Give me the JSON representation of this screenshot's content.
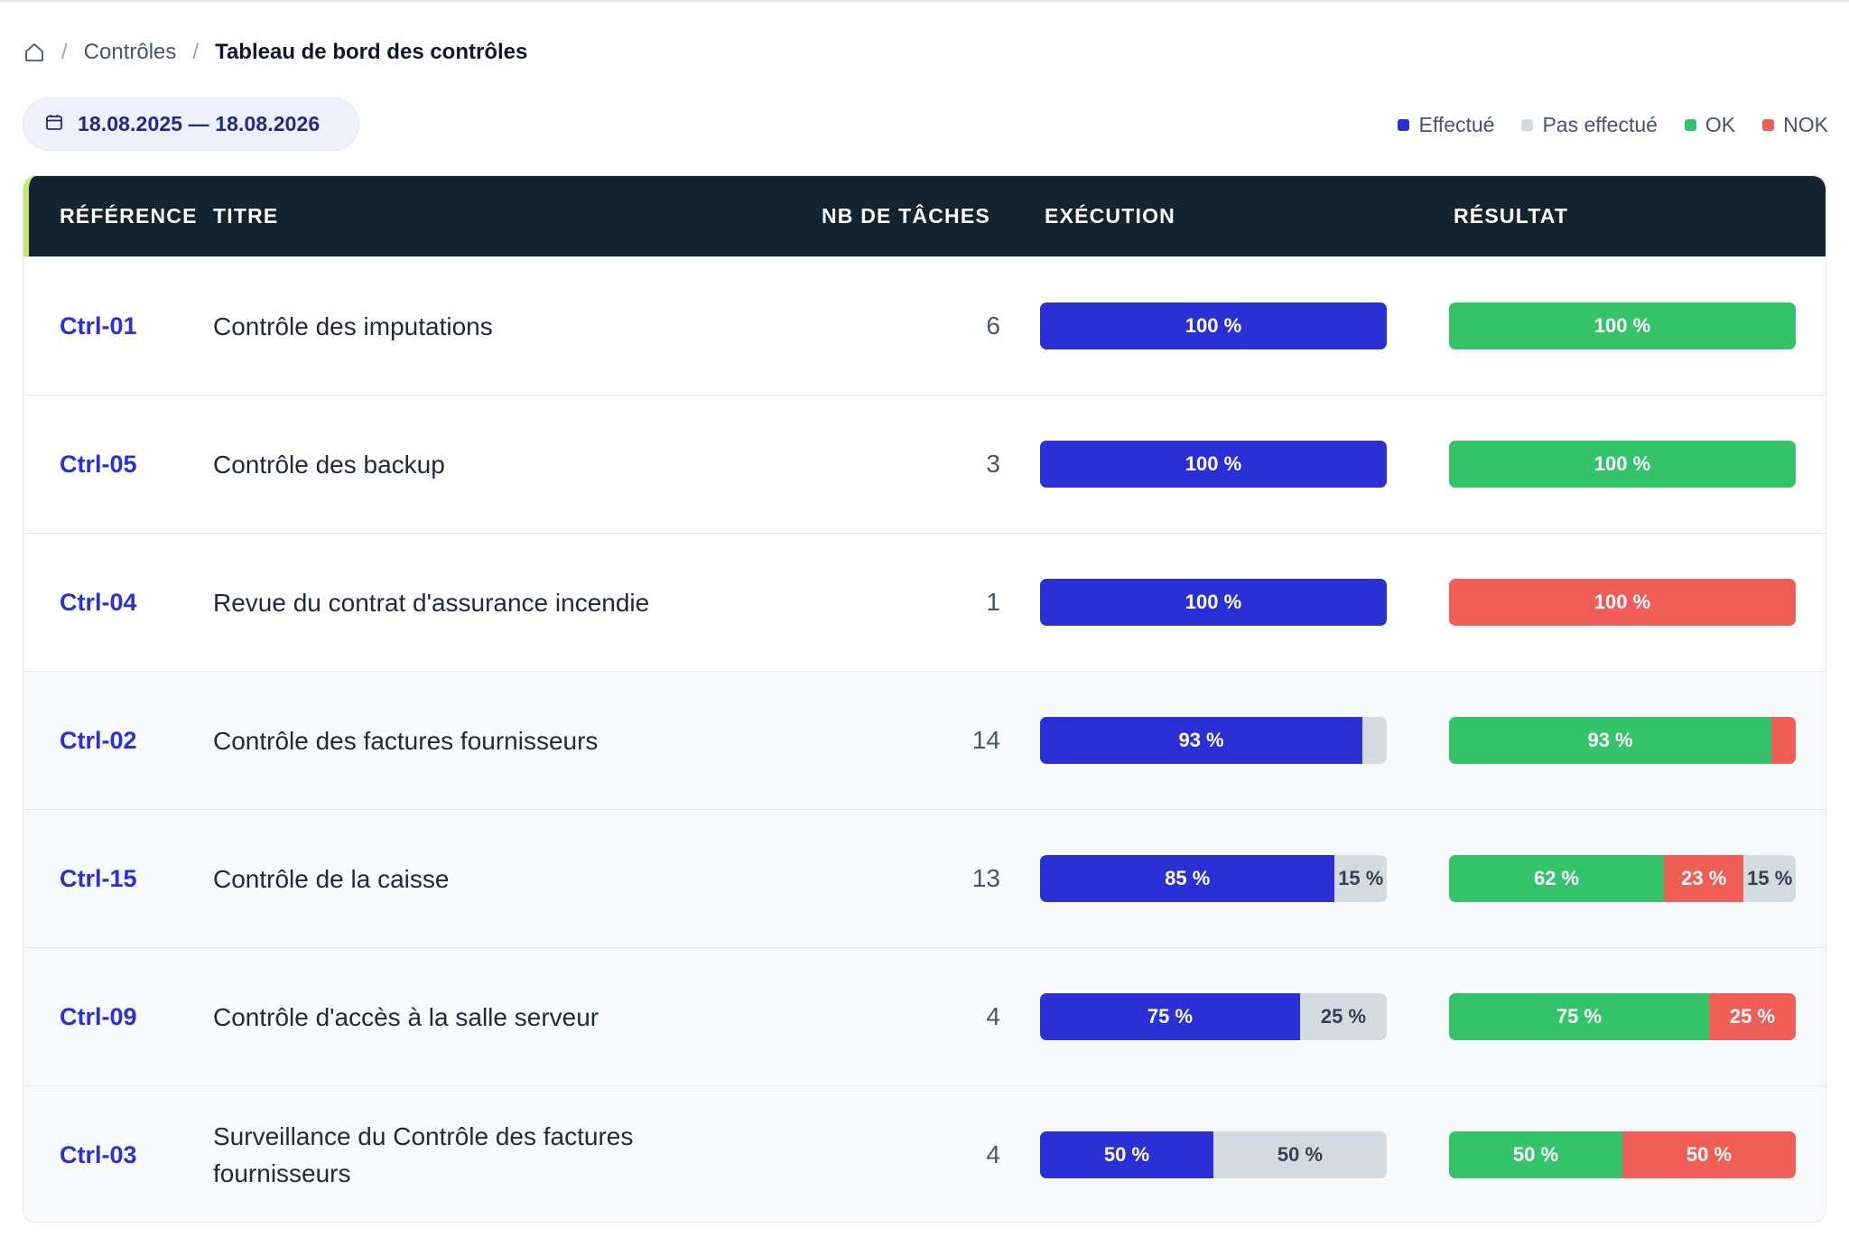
{
  "breadcrumb": {
    "home_icon": "home-icon",
    "separator": "/",
    "items": [
      "Contrôles",
      "Tableau de bord des contrôles"
    ]
  },
  "date_range": {
    "icon": "calendar-icon",
    "label": "18.08.2025 — 18.08.2026"
  },
  "legend": [
    {
      "label": "Effectué",
      "color": "#2a2fd6"
    },
    {
      "label": "Pas effectué",
      "color": "#d4dbe0"
    },
    {
      "label": "OK",
      "color": "#34c26a"
    },
    {
      "label": "NOK",
      "color": "#f05d57"
    }
  ],
  "table": {
    "headers": {
      "reference": "RÉFÉRENCE",
      "title": "TITRE",
      "tasks": "NB DE TÂCHES",
      "execution": "EXÉCUTION",
      "result": "RÉSULTAT"
    },
    "rows": [
      {
        "ref": "Ctrl-01",
        "title": "Contrôle des imputations",
        "tasks": "6",
        "execution": [
          {
            "kind": "done",
            "value": 100,
            "label": "100 %"
          }
        ],
        "result": [
          {
            "kind": "ok",
            "value": 100,
            "label": "100 %"
          }
        ]
      },
      {
        "ref": "Ctrl-05",
        "title": "Contrôle des backup",
        "tasks": "3",
        "execution": [
          {
            "kind": "done",
            "value": 100,
            "label": "100 %"
          }
        ],
        "result": [
          {
            "kind": "ok",
            "value": 100,
            "label": "100 %"
          }
        ]
      },
      {
        "ref": "Ctrl-04",
        "title": "Revue du contrat d'assurance incendie",
        "tasks": "1",
        "execution": [
          {
            "kind": "done",
            "value": 100,
            "label": "100 %"
          }
        ],
        "result": [
          {
            "kind": "nok",
            "value": 100,
            "label": "100 %"
          }
        ]
      },
      {
        "ref": "Ctrl-02",
        "title": "Contrôle des factures fournisseurs",
        "tasks": "14",
        "execution": [
          {
            "kind": "done",
            "value": 93,
            "label": "93 %"
          },
          {
            "kind": "notdone",
            "value": 7,
            "label": ""
          }
        ],
        "result": [
          {
            "kind": "ok",
            "value": 93,
            "label": "93 %"
          },
          {
            "kind": "nok",
            "value": 7,
            "label": ""
          }
        ]
      },
      {
        "ref": "Ctrl-15",
        "title": "Contrôle de la caisse",
        "tasks": "13",
        "execution": [
          {
            "kind": "done",
            "value": 85,
            "label": "85 %"
          },
          {
            "kind": "notdone",
            "value": 15,
            "label": "15 %"
          }
        ],
        "result": [
          {
            "kind": "ok",
            "value": 62,
            "label": "62 %"
          },
          {
            "kind": "nok",
            "value": 23,
            "label": "23 %"
          },
          {
            "kind": "notdone",
            "value": 15,
            "label": "15 %"
          }
        ]
      },
      {
        "ref": "Ctrl-09",
        "title": "Contrôle d'accès à la salle serveur",
        "tasks": "4",
        "execution": [
          {
            "kind": "done",
            "value": 75,
            "label": "75 %"
          },
          {
            "kind": "notdone",
            "value": 25,
            "label": "25 %"
          }
        ],
        "result": [
          {
            "kind": "ok",
            "value": 75,
            "label": "75 %"
          },
          {
            "kind": "nok",
            "value": 25,
            "label": "25 %"
          }
        ]
      },
      {
        "ref": "Ctrl-03",
        "title": "Surveillance du Contrôle des factures fournisseurs",
        "tasks": "4",
        "execution": [
          {
            "kind": "done",
            "value": 50,
            "label": "50 %"
          },
          {
            "kind": "notdone",
            "value": 50,
            "label": "50 %"
          }
        ],
        "result": [
          {
            "kind": "ok",
            "value": 50,
            "label": "50 %"
          },
          {
            "kind": "nok",
            "value": 50,
            "label": "50 %"
          }
        ]
      }
    ]
  }
}
